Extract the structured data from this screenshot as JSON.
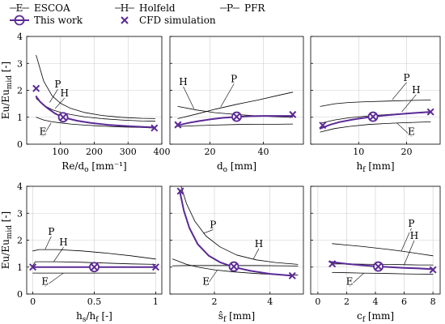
{
  "colors": {
    "reference": "#000000",
    "this_work": "#5b2a96",
    "cfd": "#5b2a96",
    "grid": "#cfcfcf"
  },
  "legend": {
    "items": [
      {
        "key": "escoa",
        "label": "ESCOA",
        "marker_letter": "E"
      },
      {
        "key": "holfeld",
        "label": "Holfeld",
        "marker_letter": "H"
      },
      {
        "key": "pfr",
        "label": "PFR",
        "marker_letter": "P"
      },
      {
        "key": "this_work",
        "label": "This work"
      },
      {
        "key": "cfd",
        "label": "CFD simulation"
      }
    ]
  },
  "chart_data": [
    {
      "type": "line",
      "xlabel": "Re/d_o [mm⁻¹]",
      "ylabel": "Eu/Eu_mid [-]",
      "xlim": [
        0,
        400
      ],
      "ylim": [
        0,
        4
      ],
      "xticks": [
        100,
        200,
        300,
        400
      ],
      "yticks": [
        0,
        1,
        2,
        3,
        4
      ],
      "grid": true,
      "series": [
        {
          "key": "pfr",
          "name": "PFR",
          "x": [
            28,
            50,
            75,
            100,
            130,
            170,
            220,
            280,
            340,
            380
          ],
          "y": [
            3.3,
            2.35,
            1.8,
            1.52,
            1.33,
            1.18,
            1.07,
            1.0,
            0.96,
            0.95
          ]
        },
        {
          "key": "holfeld",
          "name": "Holfeld",
          "x": [
            28,
            50,
            75,
            100,
            130,
            170,
            220,
            280,
            340,
            380
          ],
          "y": [
            1.7,
            1.45,
            1.28,
            1.18,
            1.1,
            1.02,
            0.95,
            0.9,
            0.86,
            0.85
          ]
        },
        {
          "key": "escoa",
          "name": "ESCOA",
          "x": [
            28,
            50,
            75,
            100,
            130,
            170,
            220,
            280,
            340,
            380
          ],
          "y": [
            1.0,
            0.9,
            0.83,
            0.79,
            0.75,
            0.71,
            0.67,
            0.64,
            0.62,
            0.6
          ]
        },
        {
          "key": "this_work",
          "name": "This work",
          "x": [
            28,
            40,
            55,
            70,
            85,
            100,
            120,
            150,
            190,
            240,
            300,
            380
          ],
          "y": [
            1.77,
            1.57,
            1.4,
            1.26,
            1.13,
            1.04,
            0.96,
            0.87,
            0.79,
            0.72,
            0.67,
            0.62
          ]
        }
      ],
      "this_work_marker": {
        "x": 108,
        "y": 1.0
      },
      "cfd_points": [
        {
          "x": 28,
          "y": 2.07
        },
        {
          "x": 108,
          "y": 1.0
        },
        {
          "x": 378,
          "y": 0.6
        }
      ],
      "curve_labels": [
        {
          "text": "P",
          "x": 92,
          "y": 2.1,
          "anchor_x": 68,
          "anchor_y": 1.55
        },
        {
          "text": "H",
          "x": 112,
          "y": 1.77,
          "anchor_x": 84,
          "anchor_y": 1.32
        },
        {
          "text": "E",
          "x": 48,
          "y": 0.35,
          "anchor_x": 72,
          "anchor_y": 0.78
        }
      ]
    },
    {
      "type": "line",
      "xlabel": "d_o [mm]",
      "xlim": [
        5,
        55
      ],
      "ylim": [
        0,
        4
      ],
      "xticks": [
        20,
        40
      ],
      "yticks": [
        0,
        1,
        2,
        3,
        4
      ],
      "grid": true,
      "series": [
        {
          "key": "pfr",
          "name": "PFR",
          "x": [
            8,
            15,
            22,
            30,
            38,
            45,
            51
          ],
          "y": [
            0.95,
            1.12,
            1.3,
            1.48,
            1.64,
            1.8,
            1.93
          ]
        },
        {
          "key": "holfeld",
          "name": "Holfeld",
          "x": [
            8,
            15,
            22,
            30,
            38,
            45,
            51
          ],
          "y": [
            1.4,
            1.27,
            1.17,
            1.1,
            1.05,
            1.02,
            1.0
          ]
        },
        {
          "key": "escoa",
          "name": "ESCOA",
          "x": [
            8,
            15,
            22,
            30,
            38,
            45,
            51
          ],
          "y": [
            0.66,
            0.69,
            0.71,
            0.73,
            0.74,
            0.74,
            0.75
          ]
        },
        {
          "key": "this_work",
          "name": "This work",
          "x": [
            8,
            12,
            16,
            20,
            25,
            30,
            35,
            40,
            45,
            51
          ],
          "y": [
            0.7,
            0.79,
            0.86,
            0.92,
            0.98,
            1.01,
            1.04,
            1.05,
            1.05,
            1.05
          ]
        }
      ],
      "this_work_marker": {
        "x": 30,
        "y": 1.02
      },
      "cfd_points": [
        {
          "x": 8,
          "y": 0.72
        },
        {
          "x": 30,
          "y": 1.02
        },
        {
          "x": 51,
          "y": 1.1
        }
      ],
      "curve_labels": [
        {
          "text": "H",
          "x": 10,
          "y": 2.2,
          "anchor_x": 14,
          "anchor_y": 1.32
        },
        {
          "text": "P",
          "x": 29,
          "y": 2.3,
          "anchor_x": 24,
          "anchor_y": 1.38
        }
      ]
    },
    {
      "type": "line",
      "xlabel": "h_f [mm]",
      "xlim": [
        0,
        27
      ],
      "ylim": [
        0,
        4
      ],
      "xticks": [
        10,
        20
      ],
      "yticks": [
        0,
        1,
        2,
        3,
        4
      ],
      "grid": true,
      "series": [
        {
          "key": "pfr",
          "name": "PFR",
          "x": [
            2,
            5,
            8,
            12,
            16,
            20,
            25
          ],
          "y": [
            1.4,
            1.5,
            1.55,
            1.58,
            1.6,
            1.62,
            1.64
          ]
        },
        {
          "key": "holfeld",
          "name": "Holfeld",
          "x": [
            2,
            5,
            8,
            12,
            16,
            20,
            25
          ],
          "y": [
            0.78,
            0.9,
            0.98,
            1.05,
            1.1,
            1.14,
            1.18
          ]
        },
        {
          "key": "escoa",
          "name": "ESCOA",
          "x": [
            2,
            5,
            8,
            12,
            16,
            20,
            25
          ],
          "y": [
            0.45,
            0.58,
            0.66,
            0.73,
            0.77,
            0.8,
            0.83
          ]
        },
        {
          "key": "this_work",
          "name": "This work",
          "x": [
            2,
            4,
            6,
            9,
            12,
            15,
            18,
            21,
            25
          ],
          "y": [
            0.58,
            0.72,
            0.82,
            0.92,
            1.0,
            1.06,
            1.11,
            1.15,
            1.2
          ]
        }
      ],
      "this_work_marker": {
        "x": 13,
        "y": 1.02
      },
      "cfd_points": [
        {
          "x": 2.5,
          "y": 0.7
        },
        {
          "x": 13,
          "y": 1.02
        },
        {
          "x": 25,
          "y": 1.2
        }
      ],
      "curve_labels": [
        {
          "text": "P",
          "x": 20,
          "y": 2.35,
          "anchor_x": 17,
          "anchor_y": 1.65
        },
        {
          "text": "H",
          "x": 22,
          "y": 1.9,
          "anchor_x": 19,
          "anchor_y": 1.2
        },
        {
          "text": "E",
          "x": 21,
          "y": 0.35,
          "anchor_x": 18,
          "anchor_y": 0.78
        }
      ]
    },
    {
      "type": "line",
      "xlabel": "h_s/h_f [-]",
      "ylabel": "Eu/Eu_mid [-]",
      "xlim": [
        -0.05,
        1.05
      ],
      "ylim": [
        0,
        4
      ],
      "xticks": [
        0,
        0.5,
        1
      ],
      "yticks": [
        0,
        1,
        2,
        3,
        4
      ],
      "grid": true,
      "series": [
        {
          "key": "pfr",
          "name": "PFR",
          "x": [
            0,
            0.05,
            0.2,
            0.4,
            0.6,
            0.8,
            1.0
          ],
          "y": [
            1.6,
            1.65,
            1.65,
            1.6,
            1.52,
            1.42,
            1.3
          ]
        },
        {
          "key": "holfeld",
          "name": "Holfeld",
          "x": [
            0,
            0.02,
            0.2,
            0.4,
            0.6,
            0.8,
            1.0
          ],
          "y": [
            1.05,
            1.2,
            1.2,
            1.18,
            1.15,
            1.12,
            1.1
          ]
        },
        {
          "key": "escoa",
          "name": "ESCOA",
          "x": [
            0,
            1.0
          ],
          "y": [
            0.78,
            0.78
          ]
        },
        {
          "key": "this_work",
          "name": "This work",
          "x": [
            0,
            0.25,
            0.5,
            0.75,
            1.0
          ],
          "y": [
            1.0,
            1.0,
            1.0,
            1.0,
            1.0
          ]
        }
      ],
      "this_work_marker": {
        "x": 0.5,
        "y": 1.0
      },
      "cfd_points": [
        {
          "x": 0,
          "y": 1.0
        },
        {
          "x": 0.5,
          "y": 1.0
        },
        {
          "x": 1.0,
          "y": 1.0
        }
      ],
      "curve_labels": [
        {
          "text": "P",
          "x": 0.15,
          "y": 2.2,
          "anchor_x": 0.1,
          "anchor_y": 1.66
        },
        {
          "text": "H",
          "x": 0.25,
          "y": 1.8,
          "anchor_x": 0.17,
          "anchor_y": 1.2
        },
        {
          "text": "E",
          "x": 0.1,
          "y": 0.35,
          "anchor_x": 0.25,
          "anchor_y": 0.78
        }
      ]
    },
    {
      "type": "line",
      "xlabel": "ŝ_f [mm]",
      "xlim": [
        0.4,
        5.2
      ],
      "ylim": [
        0,
        4
      ],
      "xticks": [
        2,
        4
      ],
      "yticks": [
        0,
        1,
        2,
        3,
        4
      ],
      "grid": true,
      "series": [
        {
          "key": "pfr",
          "name": "PFR",
          "x": [
            0.8,
            1.0,
            1.3,
            1.7,
            2.2,
            2.8,
            3.5,
            4.2,
            5.0
          ],
          "y": [
            4.0,
            3.35,
            2.7,
            2.15,
            1.75,
            1.45,
            1.27,
            1.17,
            1.1
          ]
        },
        {
          "key": "holfeld",
          "name": "Holfeld",
          "x": [
            0.5,
            1.0,
            1.7,
            2.5,
            3.5,
            4.5,
            5.0
          ],
          "y": [
            1.05,
            1.06,
            1.06,
            1.06,
            1.06,
            1.05,
            1.04
          ]
        },
        {
          "key": "escoa",
          "name": "ESCOA",
          "x": [
            0.5,
            1.0,
            1.5,
            2.0,
            2.7,
            3.5,
            4.3,
            5.0
          ],
          "y": [
            1.3,
            1.1,
            0.98,
            0.9,
            0.82,
            0.76,
            0.72,
            0.7
          ]
        },
        {
          "key": "this_work",
          "name": "This work",
          "x": [
            0.75,
            0.9,
            1.1,
            1.4,
            1.8,
            2.2,
            2.7,
            3.3,
            4.0,
            4.8
          ],
          "y": [
            3.85,
            3.1,
            2.45,
            1.85,
            1.42,
            1.18,
            1.0,
            0.86,
            0.75,
            0.68
          ]
        }
      ],
      "this_work_marker": {
        "x": 2.7,
        "y": 1.02
      },
      "cfd_points": [
        {
          "x": 0.78,
          "y": 3.82
        },
        {
          "x": 2.7,
          "y": 1.02
        },
        {
          "x": 4.8,
          "y": 0.68
        }
      ],
      "curve_labels": [
        {
          "text": "P",
          "x": 1.95,
          "y": 2.45,
          "anchor_x": 1.6,
          "anchor_y": 2.25
        },
        {
          "text": "H",
          "x": 3.6,
          "y": 1.75,
          "anchor_x": 3.4,
          "anchor_y": 1.3
        },
        {
          "text": "E",
          "x": 1.7,
          "y": 0.35,
          "anchor_x": 2.1,
          "anchor_y": 0.88
        }
      ]
    },
    {
      "type": "line",
      "xlabel": "c_f [mm]",
      "xlim": [
        -0.5,
        8.5
      ],
      "ylim": [
        0,
        4
      ],
      "xticks": [
        0,
        2,
        4,
        6,
        8
      ],
      "yticks": [
        0,
        1,
        2,
        3,
        4
      ],
      "grid": true,
      "series": [
        {
          "key": "pfr",
          "name": "PFR",
          "x": [
            1,
            2,
            3,
            4,
            5,
            6,
            7,
            8
          ],
          "y": [
            1.87,
            1.82,
            1.77,
            1.71,
            1.65,
            1.58,
            1.5,
            1.42
          ]
        },
        {
          "key": "holfeld",
          "name": "Holfeld",
          "x": [
            1,
            2,
            3,
            4,
            5,
            6,
            7,
            8
          ],
          "y": [
            1.12,
            1.12,
            1.11,
            1.1,
            1.1,
            1.09,
            1.08,
            1.08
          ]
        },
        {
          "key": "escoa",
          "name": "ESCOA",
          "x": [
            1,
            2,
            3,
            4,
            5,
            6,
            7,
            8
          ],
          "y": [
            0.8,
            0.79,
            0.78,
            0.77,
            0.76,
            0.75,
            0.74,
            0.73
          ]
        },
        {
          "key": "this_work",
          "name": "This work",
          "x": [
            0.8,
            2,
            3,
            4,
            5,
            6,
            7,
            8
          ],
          "y": [
            1.2,
            1.12,
            1.07,
            1.03,
            1.0,
            0.97,
            0.95,
            0.92
          ]
        }
      ],
      "this_work_marker": {
        "x": 4.2,
        "y": 1.02
      },
      "cfd_points": [
        {
          "x": 1.0,
          "y": 1.12
        },
        {
          "x": 4.2,
          "y": 1.02
        },
        {
          "x": 8.0,
          "y": 0.9
        }
      ],
      "curve_labels": [
        {
          "text": "P",
          "x": 6.5,
          "y": 2.5,
          "anchor_x": 5.8,
          "anchor_y": 1.6
        },
        {
          "text": "H",
          "x": 6.7,
          "y": 2.05,
          "anchor_x": 6.0,
          "anchor_y": 1.09
        },
        {
          "text": "E",
          "x": 2.2,
          "y": 0.35,
          "anchor_x": 3.2,
          "anchor_y": 0.78
        }
      ]
    }
  ]
}
